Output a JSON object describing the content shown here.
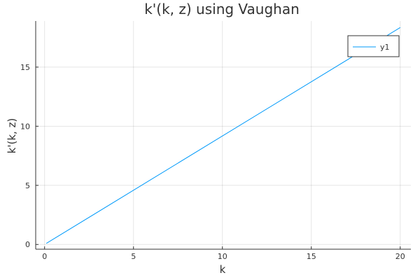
{
  "chart_data": {
    "type": "line",
    "title": "k'(k, z) using Vaughan",
    "xlabel": "k",
    "ylabel": "k'(k, z)",
    "xlim": [
      -0.5,
      20.6
    ],
    "ylim": [
      -0.4,
      18.9
    ],
    "xticks": [
      0,
      5,
      10,
      15,
      20
    ],
    "yticks": [
      0,
      5,
      10,
      15
    ],
    "grid": true,
    "legend_position": "top-right",
    "series": [
      {
        "name": "y1",
        "color": "#009AFA",
        "x": [
          0.1,
          20.0
        ],
        "y": [
          0.09,
          18.35
        ]
      }
    ]
  }
}
